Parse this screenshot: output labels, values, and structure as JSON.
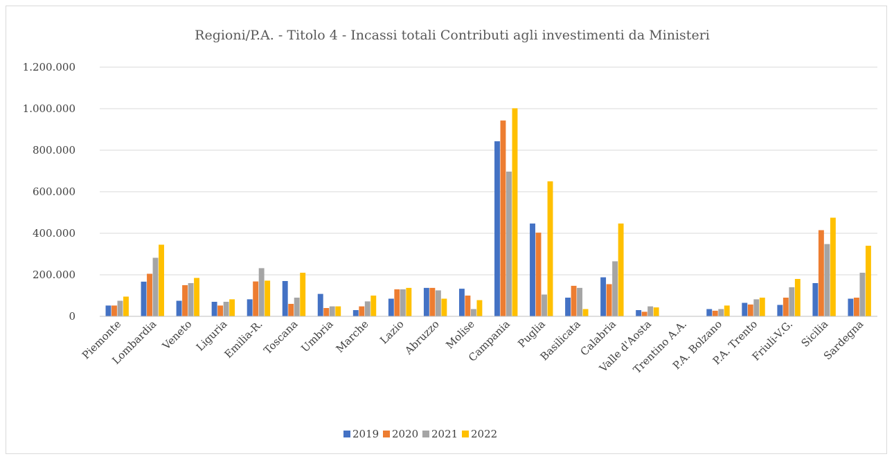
{
  "chart_data": {
    "type": "bar",
    "title": "Regioni/P.A. - Titolo 4 - Incassi totali Contributi agli investimenti da Ministeri",
    "xlabel": "",
    "ylabel": "",
    "ylim": [
      0,
      1200000
    ],
    "yticks": [
      {
        "value": 0,
        "label": "0"
      },
      {
        "value": 200000,
        "label": "200.000"
      },
      {
        "value": 400000,
        "label": "400.000"
      },
      {
        "value": 600000,
        "label": "600.000"
      },
      {
        "value": 800000,
        "label": "800.000"
      },
      {
        "value": 1000000,
        "label": "1.000.000"
      },
      {
        "value": 1200000,
        "label": "1.200.000"
      }
    ],
    "grid": true,
    "legend_position": "bottom",
    "categories": [
      "Piemonte",
      "Lombardia",
      "Veneto",
      "Liguria",
      "Emilia-R.",
      "Toscana",
      "Umbria",
      "Marche",
      "Lazio",
      "Abruzzo",
      "Molise",
      "Campania",
      "Puglia",
      "Basilicata",
      "Calabria",
      "Valle d'Aosta",
      "Trentino A.A.",
      "P.A. Bolzano",
      "P.A. Trento",
      "Friuli-V.G.",
      "Sicilia",
      "Sardegna"
    ],
    "series": [
      {
        "name": "2019",
        "color": "#4472c4",
        "values": [
          52000,
          167000,
          75000,
          70000,
          82000,
          170000,
          108000,
          30000,
          85000,
          137000,
          133000,
          843000,
          447000,
          90000,
          188000,
          30000,
          0,
          35000,
          65000,
          55000,
          160000,
          85000
        ]
      },
      {
        "name": "2020",
        "color": "#ed7d31",
        "values": [
          52000,
          205000,
          150000,
          52000,
          168000,
          60000,
          40000,
          48000,
          130000,
          137000,
          100000,
          943000,
          403000,
          147000,
          155000,
          22000,
          0,
          27000,
          57000,
          90000,
          415000,
          90000
        ]
      },
      {
        "name": "2021",
        "color": "#a5a5a5",
        "values": [
          75000,
          282000,
          160000,
          70000,
          232000,
          90000,
          48000,
          72000,
          130000,
          125000,
          35000,
          697000,
          105000,
          137000,
          265000,
          48000,
          0,
          35000,
          82000,
          140000,
          348000,
          210000
        ]
      },
      {
        "name": "2022",
        "color": "#ffc000",
        "values": [
          95000,
          345000,
          185000,
          82000,
          172000,
          210000,
          48000,
          100000,
          137000,
          85000,
          78000,
          1002000,
          650000,
          35000,
          447000,
          43000,
          0,
          52000,
          90000,
          180000,
          475000,
          340000
        ]
      }
    ]
  }
}
